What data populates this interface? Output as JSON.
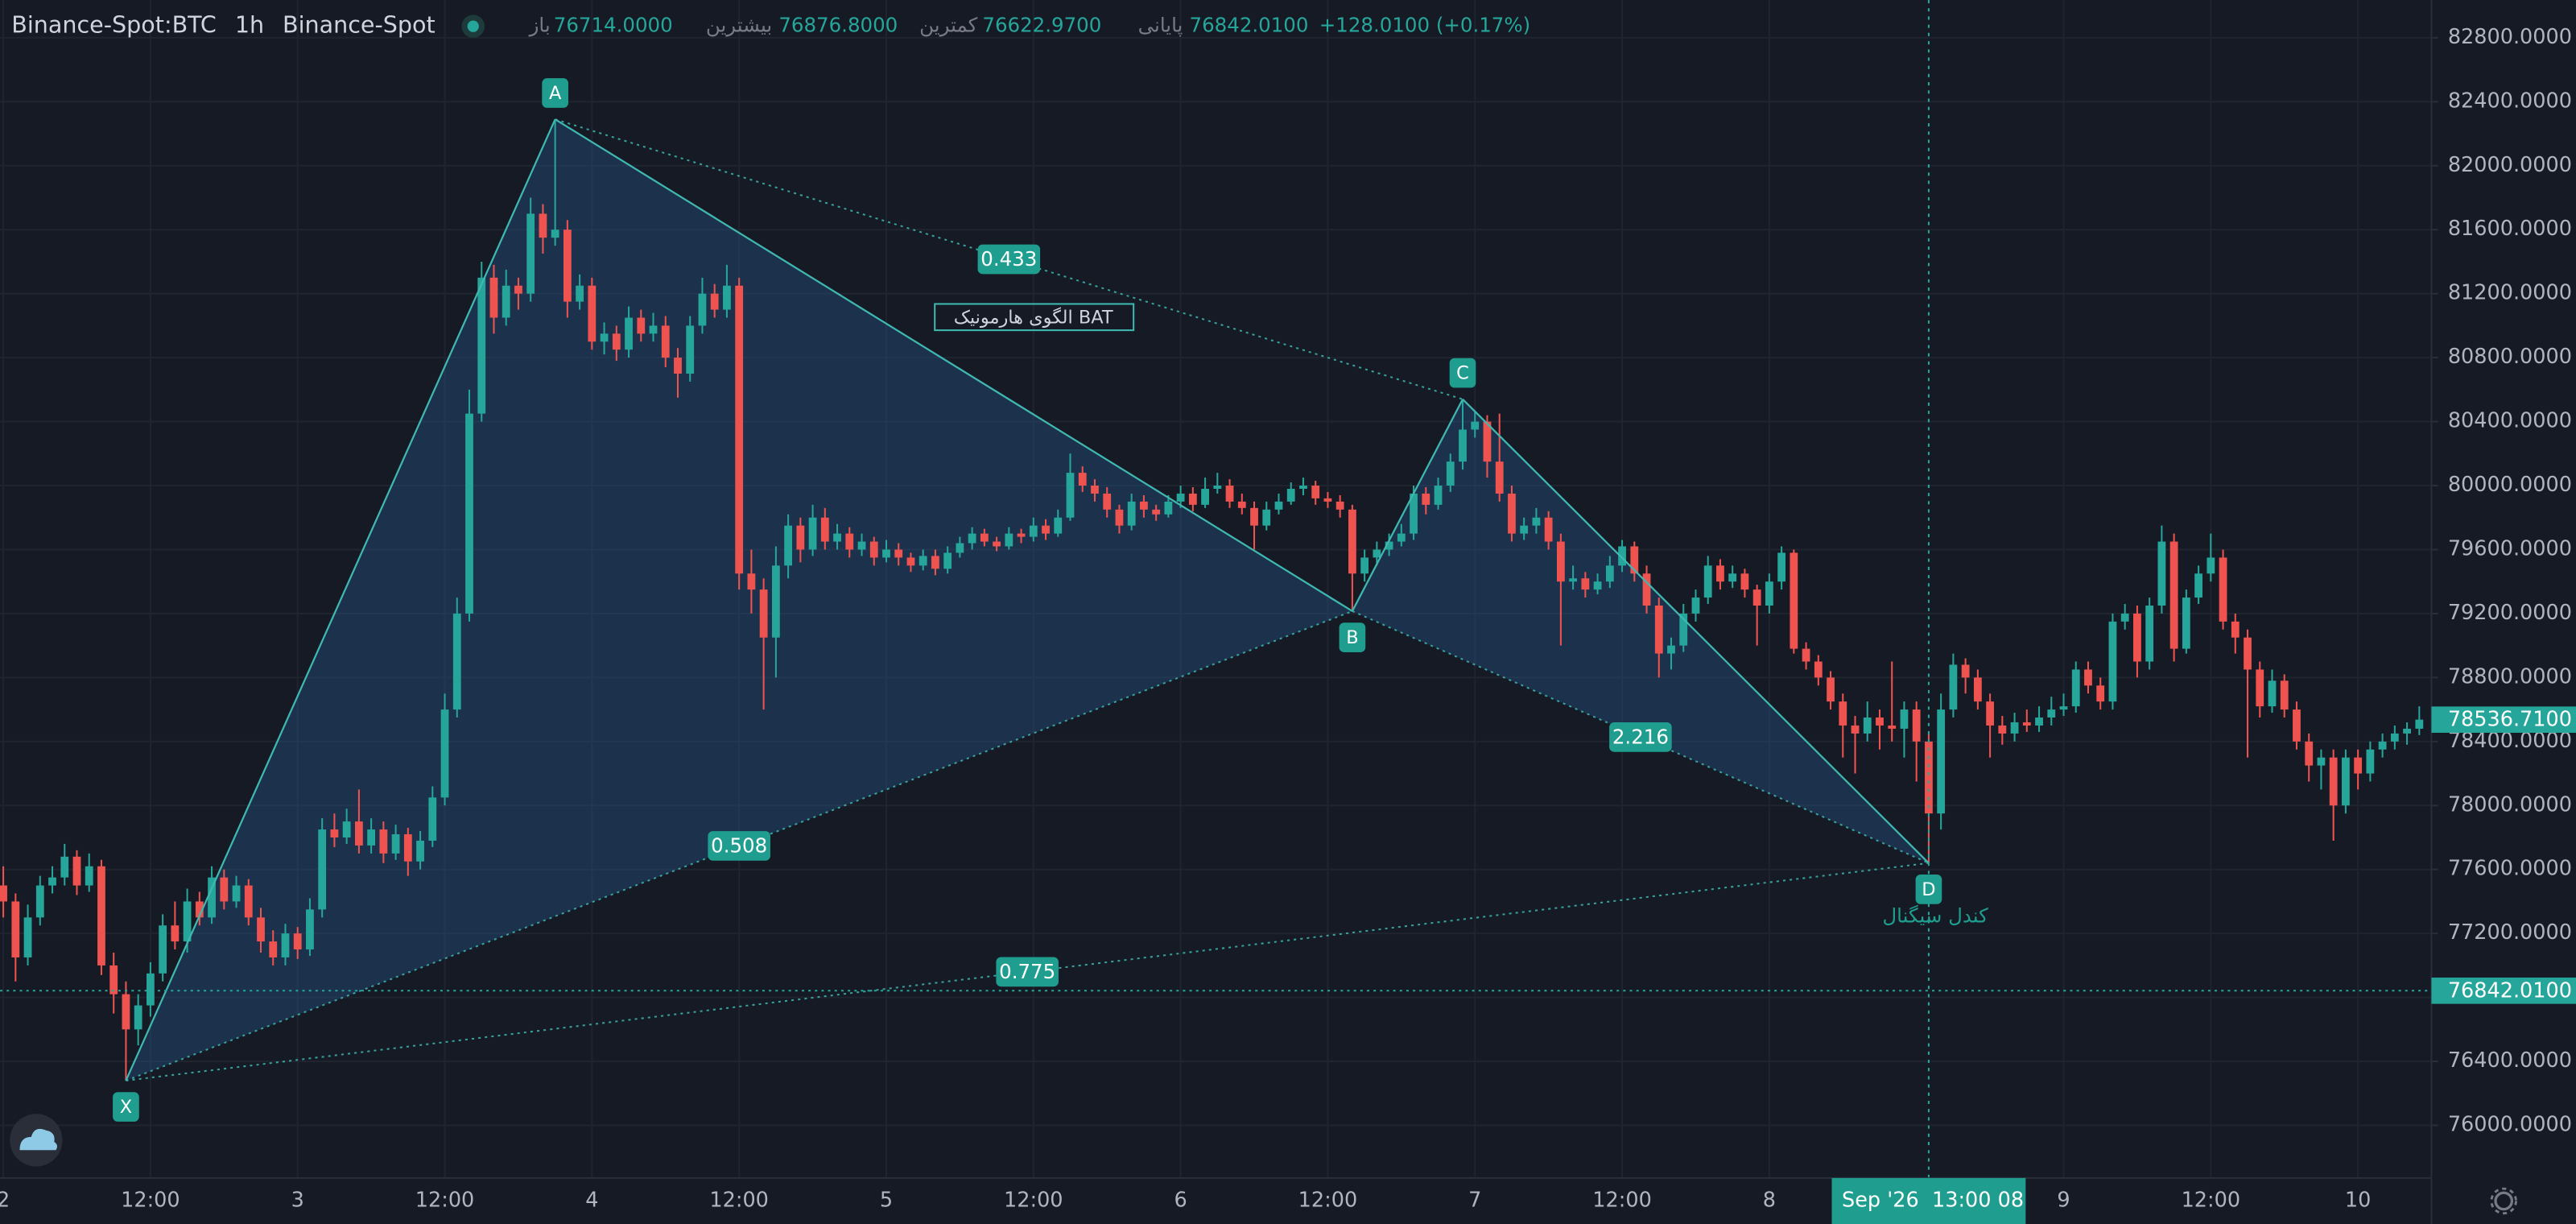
{
  "chart_data": {
    "type": "candlestick",
    "symbol": "Binance-Spot:BTC",
    "interval": "1h",
    "exchange": "Binance-Spot",
    "ohlc_summary": [
      {
        "label": "باز",
        "value": "76714.0000"
      },
      {
        "label": "بیشترین",
        "value": "76876.8000"
      },
      {
        "label": "کمترین",
        "value": "76622.9700"
      },
      {
        "label": "پایانی",
        "value": "76842.0100"
      }
    ],
    "change": "+128.0100 (+0.17%)",
    "up_color": "#26a69a",
    "down_color": "#ef5350",
    "grid": true,
    "ylim": [
      75671,
      83036
    ],
    "yticks": [
      {
        "value": 76000,
        "label": "76000.0000"
      },
      {
        "value": 76400,
        "label": "76400.0000"
      },
      {
        "value": 76800,
        "label": "76800.0000"
      },
      {
        "value": 77200,
        "label": "77200.0000"
      },
      {
        "value": 77600,
        "label": "77600.0000"
      },
      {
        "value": 78000,
        "label": "78000.0000"
      },
      {
        "value": 78400,
        "label": "78400.0000"
      },
      {
        "value": 78800,
        "label": "78800.0000"
      },
      {
        "value": 79200,
        "label": "79200.0000"
      },
      {
        "value": 79600,
        "label": "79600.0000"
      },
      {
        "value": 80000,
        "label": "80000.0000"
      },
      {
        "value": 80400,
        "label": "80400.0000"
      },
      {
        "value": 80800,
        "label": "80800.0000"
      },
      {
        "value": 81200,
        "label": "81200.0000"
      },
      {
        "value": 81600,
        "label": "81600.0000"
      },
      {
        "value": 82000,
        "label": "82000.0000"
      },
      {
        "value": 82400,
        "label": "82400.0000"
      },
      {
        "value": 82800,
        "label": "82800.0000"
      }
    ],
    "xticks": [
      {
        "value": "2026-09-02 00:00",
        "label": "2"
      },
      {
        "value": "2026-09-02 12:00",
        "label": "12:00"
      },
      {
        "value": "2026-09-03 00:00",
        "label": "3"
      },
      {
        "value": "2026-09-03 12:00",
        "label": "12:00"
      },
      {
        "value": "2026-09-04 00:00",
        "label": "4"
      },
      {
        "value": "2026-09-04 12:00",
        "label": "12:00"
      },
      {
        "value": "2026-09-05 00:00",
        "label": "5"
      },
      {
        "value": "2026-09-05 12:00",
        "label": "12:00"
      },
      {
        "value": "2026-09-06 00:00",
        "label": "6"
      },
      {
        "value": "2026-09-06 12:00",
        "label": "12:00"
      },
      {
        "value": "2026-09-07 00:00",
        "label": "7"
      },
      {
        "value": "2026-09-07 12:00",
        "label": "12:00"
      },
      {
        "value": "2026-09-08 00:00",
        "label": "8"
      },
      {
        "value": "2026-09-09 00:00",
        "label": "9"
      },
      {
        "value": "2026-09-09 12:00",
        "label": "12:00"
      },
      {
        "value": "2026-09-10 00:00",
        "label": "10"
      }
    ],
    "x": [
      "2026-09-02 00:00",
      "2026-09-02 01:00",
      "2026-09-02 02:00",
      "2026-09-02 03:00",
      "2026-09-02 04:00",
      "2026-09-02 05:00",
      "2026-09-02 06:00",
      "2026-09-02 07:00",
      "2026-09-02 08:00",
      "2026-09-02 09:00",
      "2026-09-02 10:00",
      "2026-09-02 11:00",
      "2026-09-02 12:00",
      "2026-09-02 13:00",
      "2026-09-02 14:00",
      "2026-09-02 15:00",
      "2026-09-02 16:00",
      "2026-09-02 17:00",
      "2026-09-02 18:00",
      "2026-09-02 19:00",
      "2026-09-02 20:00",
      "2026-09-02 21:00",
      "2026-09-02 22:00",
      "2026-09-02 23:00",
      "2026-09-03 00:00",
      "2026-09-03 01:00",
      "2026-09-03 02:00",
      "2026-09-03 03:00",
      "2026-09-03 04:00",
      "2026-09-03 05:00",
      "2026-09-03 06:00",
      "2026-09-03 07:00",
      "2026-09-03 08:00",
      "2026-09-03 09:00",
      "2026-09-03 10:00",
      "2026-09-03 11:00",
      "2026-09-03 12:00",
      "2026-09-03 13:00",
      "2026-09-03 14:00",
      "2026-09-03 15:00",
      "2026-09-03 16:00",
      "2026-09-03 17:00",
      "2026-09-03 18:00",
      "2026-09-03 19:00",
      "2026-09-03 20:00",
      "2026-09-03 21:00",
      "2026-09-03 22:00",
      "2026-09-03 23:00",
      "2026-09-04 00:00",
      "2026-09-04 01:00",
      "2026-09-04 02:00",
      "2026-09-04 03:00",
      "2026-09-04 04:00",
      "2026-09-04 05:00",
      "2026-09-04 06:00",
      "2026-09-04 07:00",
      "2026-09-04 08:00",
      "2026-09-04 09:00",
      "2026-09-04 10:00",
      "2026-09-04 11:00",
      "2026-09-04 12:00",
      "2026-09-04 13:00",
      "2026-09-04 14:00",
      "2026-09-04 15:00",
      "2026-09-04 16:00",
      "2026-09-04 17:00",
      "2026-09-04 18:00",
      "2026-09-04 19:00",
      "2026-09-04 20:00",
      "2026-09-04 21:00",
      "2026-09-04 22:00",
      "2026-09-04 23:00",
      "2026-09-05 00:00",
      "2026-09-05 01:00",
      "2026-09-05 02:00",
      "2026-09-05 03:00",
      "2026-09-05 04:00",
      "2026-09-05 05:00",
      "2026-09-05 06:00",
      "2026-09-05 07:00",
      "2026-09-05 08:00",
      "2026-09-05 09:00",
      "2026-09-05 10:00",
      "2026-09-05 11:00",
      "2026-09-05 12:00",
      "2026-09-05 13:00",
      "2026-09-05 14:00",
      "2026-09-05 15:00",
      "2026-09-05 16:00",
      "2026-09-05 17:00",
      "2026-09-05 18:00",
      "2026-09-05 19:00",
      "2026-09-05 20:00",
      "2026-09-05 21:00",
      "2026-09-05 22:00",
      "2026-09-05 23:00",
      "2026-09-06 00:00",
      "2026-09-06 01:00",
      "2026-09-06 02:00",
      "2026-09-06 03:00",
      "2026-09-06 04:00",
      "2026-09-06 05:00",
      "2026-09-06 06:00",
      "2026-09-06 07:00",
      "2026-09-06 08:00",
      "2026-09-06 09:00",
      "2026-09-06 10:00",
      "2026-09-06 11:00",
      "2026-09-06 12:00",
      "2026-09-06 13:00",
      "2026-09-06 14:00",
      "2026-09-06 15:00",
      "2026-09-06 16:00",
      "2026-09-06 17:00",
      "2026-09-06 18:00",
      "2026-09-06 19:00",
      "2026-09-06 20:00",
      "2026-09-06 21:00",
      "2026-09-06 22:00",
      "2026-09-06 23:00",
      "2026-09-07 00:00",
      "2026-09-07 01:00",
      "2026-09-07 02:00",
      "2026-09-07 03:00",
      "2026-09-07 04:00",
      "2026-09-07 05:00",
      "2026-09-07 06:00",
      "2026-09-07 07:00",
      "2026-09-07 08:00",
      "2026-09-07 09:00",
      "2026-09-07 10:00",
      "2026-09-07 11:00",
      "2026-09-07 12:00",
      "2026-09-07 13:00",
      "2026-09-07 14:00",
      "2026-09-07 15:00",
      "2026-09-07 16:00",
      "2026-09-07 17:00",
      "2026-09-07 18:00",
      "2026-09-07 19:00",
      "2026-09-07 20:00",
      "2026-09-07 21:00",
      "2026-09-07 22:00",
      "2026-09-07 23:00",
      "2026-09-08 00:00",
      "2026-09-08 01:00",
      "2026-09-08 02:00",
      "2026-09-08 03:00",
      "2026-09-08 04:00",
      "2026-09-08 05:00",
      "2026-09-08 06:00",
      "2026-09-08 07:00",
      "2026-09-08 08:00",
      "2026-09-08 09:00",
      "2026-09-08 10:00",
      "2026-09-08 11:00",
      "2026-09-08 12:00",
      "2026-09-08 13:00",
      "2026-09-08 14:00",
      "2026-09-08 15:00",
      "2026-09-08 16:00",
      "2026-09-08 17:00",
      "2026-09-08 18:00",
      "2026-09-08 19:00",
      "2026-09-08 20:00",
      "2026-09-08 21:00",
      "2026-09-08 22:00",
      "2026-09-08 23:00",
      "2026-09-09 00:00",
      "2026-09-09 01:00",
      "2026-09-09 02:00",
      "2026-09-09 03:00",
      "2026-09-09 04:00",
      "2026-09-09 05:00",
      "2026-09-09 06:00",
      "2026-09-09 07:00",
      "2026-09-09 08:00",
      "2026-09-09 09:00",
      "2026-09-09 10:00",
      "2026-09-09 11:00",
      "2026-09-09 12:00",
      "2026-09-09 13:00",
      "2026-09-09 14:00",
      "2026-09-09 15:00",
      "2026-09-09 16:00",
      "2026-09-09 17:00",
      "2026-09-09 18:00",
      "2026-09-09 19:00",
      "2026-09-09 20:00",
      "2026-09-09 21:00",
      "2026-09-09 22:00",
      "2026-09-09 23:00",
      "2026-09-10 00:00",
      "2026-09-10 01:00",
      "2026-09-10 02:00",
      "2026-09-10 03:00",
      "2026-09-10 04:00",
      "2026-09-10 05:00"
    ],
    "open": [
      77500,
      77400,
      77050,
      77300,
      77500,
      77550,
      77680,
      77500,
      77620,
      77000,
      76820,
      76600,
      76750,
      76950,
      77250,
      77150,
      77400,
      77300,
      77550,
      77400,
      77500,
      77300,
      77150,
      77050,
      77200,
      77100,
      77350,
      77850,
      77800,
      77900,
      77750,
      77850,
      77700,
      77820,
      77650,
      77780,
      78050,
      78600,
      79200,
      80450,
      81300,
      81050,
      81250,
      81200,
      81700,
      81550,
      81600,
      81150,
      81250,
      80900,
      80950,
      80850,
      81050,
      80950,
      81000,
      80800,
      80700,
      81000,
      81200,
      81100,
      81250,
      79450,
      79350,
      79050,
      79500,
      79750,
      79600,
      79800,
      79650,
      79700,
      79600,
      79650,
      79550,
      79600,
      79550,
      79500,
      79560,
      79480,
      79580,
      79640,
      79700,
      79650,
      79620,
      79700,
      79680,
      79750,
      79700,
      79800,
      80080,
      80000,
      79950,
      79850,
      79750,
      79900,
      79850,
      79820,
      79900,
      79950,
      79880,
      79980,
      80000,
      79900,
      79860,
      79750,
      79850,
      79900,
      79980,
      80000,
      79920,
      79900,
      79850,
      79450,
      79550,
      79600,
      79650,
      79700,
      79950,
      79880,
      80000,
      80150,
      80350,
      80400,
      80150,
      79950,
      79700,
      79750,
      79800,
      79650,
      79400,
      79420,
      79350,
      79400,
      79500,
      79620,
      79450,
      79250,
      78950,
      79000,
      79200,
      79300,
      79500,
      79400,
      79450,
      79350,
      79250,
      79400,
      79580,
      78980,
      78900,
      78800,
      78650,
      78500,
      78450,
      78550,
      78500,
      78480,
      78600,
      78400,
      77950,
      78600,
      78880,
      78800,
      78650,
      78500,
      78450,
      78520,
      78500,
      78550,
      78600,
      78620,
      78850,
      78750,
      78650,
      79150,
      79200,
      78900,
      79250,
      79650,
      78980,
      79300,
      79450,
      79550,
      79150,
      79050,
      78850,
      78620,
      78780,
      78600,
      78400,
      78250,
      78300,
      78000,
      78300,
      78200,
      78350,
      78400,
      78450,
      78480
    ],
    "high": [
      77620,
      77450,
      77380,
      77560,
      77620,
      77760,
      77720,
      77700,
      77660,
      77080,
      76900,
      76820,
      77020,
      77320,
      77400,
      77480,
      77460,
      77620,
      77600,
      77560,
      77540,
      77360,
      77220,
      77260,
      77240,
      77420,
      77920,
      77950,
      77980,
      78100,
      77920,
      77900,
      77880,
      77860,
      77840,
      78120,
      78700,
      79300,
      80600,
      81400,
      81380,
      81350,
      81300,
      81800,
      81760,
      82290,
      81660,
      81320,
      81300,
      81020,
      81000,
      81120,
      81100,
      81080,
      81060,
      80860,
      81060,
      81300,
      81260,
      81380,
      81300,
      79600,
      79420,
      79620,
      79820,
      79800,
      79880,
      79860,
      79760,
      79740,
      79700,
      79680,
      79660,
      79640,
      79580,
      79600,
      79600,
      79620,
      79680,
      79740,
      79730,
      79680,
      79740,
      79730,
      79800,
      79790,
      79850,
      80200,
      80120,
      80040,
      79990,
      79880,
      79950,
      79940,
      79880,
      79940,
      80000,
      79990,
      80050,
      80080,
      80040,
      79950,
      79900,
      79900,
      79950,
      80020,
      80050,
      80030,
      79960,
      79940,
      79880,
      79600,
      79650,
      79700,
      79760,
      80000,
      79990,
      80050,
      80200,
      80540,
      80460,
      80440,
      80450,
      80000,
      79800,
      79860,
      79840,
      79700,
      79500,
      79460,
      79450,
      79560,
      79660,
      79650,
      79500,
      79300,
      79050,
      79260,
      79350,
      79560,
      79540,
      79500,
      79480,
      79380,
      79450,
      79620,
      79600,
      79020,
      78940,
      78840,
      78700,
      78560,
      78650,
      78600,
      78900,
      78650,
      78650,
      78450,
      78700,
      78950,
      78920,
      78850,
      78700,
      78560,
      78580,
      78600,
      78620,
      78680,
      78700,
      78900,
      78900,
      78800,
      79200,
      79260,
      79250,
      79300,
      79750,
      79700,
      79350,
      79500,
      79700,
      79600,
      79200,
      79100,
      78900,
      78850,
      78820,
      78650,
      78450,
      78350,
      78350,
      78350,
      78350,
      78400,
      78450,
      78500,
      78520,
      78620
    ],
    "low": [
      77300,
      76900,
      77000,
      77250,
      77450,
      77500,
      77440,
      77460,
      76940,
      76700,
      76280,
      76500,
      76680,
      76900,
      77100,
      77080,
      77250,
      77260,
      77350,
      77360,
      77250,
      77080,
      77000,
      77000,
      77040,
      77060,
      77300,
      77740,
      77760,
      77700,
      77700,
      77640,
      77660,
      77560,
      77600,
      77740,
      78000,
      78550,
      79150,
      80400,
      80950,
      81000,
      81100,
      81150,
      81450,
      81500,
      81050,
      81100,
      80850,
      80820,
      80780,
      80800,
      80900,
      80900,
      80740,
      80550,
      80650,
      80950,
      81050,
      81050,
      79350,
      79200,
      78600,
      78800,
      79420,
      79520,
      79560,
      79600,
      79600,
      79550,
      79560,
      79500,
      79520,
      79500,
      79460,
      79470,
      79440,
      79450,
      79550,
      79600,
      79620,
      79590,
      79600,
      79640,
      79650,
      79660,
      79680,
      79780,
      79960,
      79900,
      79800,
      79700,
      79720,
      79800,
      79780,
      79800,
      79860,
      79840,
      79860,
      79950,
      79860,
      79820,
      79600,
      79720,
      79820,
      79880,
      79940,
      79880,
      79860,
      79800,
      79215,
      79400,
      79500,
      79560,
      79620,
      79660,
      79820,
      79850,
      79960,
      80100,
      80300,
      80050,
      79900,
      79650,
      79660,
      79700,
      79600,
      79000,
      79350,
      79300,
      79320,
      79360,
      79460,
      79400,
      79200,
      78800,
      78850,
      78960,
      79150,
      79260,
      79350,
      79360,
      79300,
      79000,
      79200,
      79350,
      78950,
      78850,
      78750,
      78600,
      78300,
      78200,
      78400,
      78350,
      78400,
      78300,
      78150,
      77640,
      77850,
      78550,
      78700,
      78600,
      78300,
      78380,
      78400,
      78460,
      78460,
      78500,
      78560,
      78580,
      78700,
      78600,
      78600,
      79100,
      78800,
      78850,
      79200,
      78900,
      78950,
      79260,
      79400,
      79100,
      78950,
      78300,
      78550,
      78580,
      78550,
      78350,
      78150,
      78100,
      77780,
      77950,
      78100,
      78150,
      78300,
      78350,
      78380,
      78440
    ],
    "close": [
      77400,
      77050,
      77300,
      77500,
      77550,
      77680,
      77500,
      77620,
      77000,
      76820,
      76600,
      76750,
      76950,
      77250,
      77150,
      77400,
      77300,
      77550,
      77400,
      77500,
      77300,
      77150,
      77050,
      77200,
      77100,
      77350,
      77850,
      77800,
      77900,
      77750,
      77850,
      77700,
      77820,
      77650,
      77780,
      78050,
      78600,
      79200,
      80450,
      81300,
      81050,
      81250,
      81200,
      81700,
      81550,
      81600,
      81150,
      81250,
      80900,
      80950,
      80850,
      81050,
      80950,
      81000,
      80800,
      80700,
      81000,
      81200,
      81100,
      81250,
      79450,
      79350,
      79050,
      79500,
      79750,
      79600,
      79800,
      79650,
      79700,
      79600,
      79650,
      79550,
      79600,
      79550,
      79500,
      79560,
      79480,
      79580,
      79640,
      79700,
      79650,
      79620,
      79700,
      79680,
      79750,
      79700,
      79800,
      80080,
      80000,
      79950,
      79850,
      79750,
      79900,
      79850,
      79820,
      79900,
      79950,
      79880,
      79980,
      80000,
      79900,
      79860,
      79750,
      79850,
      79900,
      79980,
      80000,
      79920,
      79900,
      79850,
      79450,
      79550,
      79600,
      79650,
      79700,
      79950,
      79880,
      80000,
      80150,
      80350,
      80400,
      80150,
      79950,
      79700,
      79750,
      79800,
      79650,
      79400,
      79420,
      79350,
      79400,
      79500,
      79620,
      79450,
      79250,
      78950,
      79000,
      79200,
      79300,
      79500,
      79400,
      79450,
      79350,
      79250,
      79400,
      79580,
      78980,
      78900,
      78800,
      78650,
      78500,
      78450,
      78550,
      78500,
      78480,
      78600,
      78400,
      77950,
      78600,
      78880,
      78800,
      78650,
      78500,
      78450,
      78520,
      78500,
      78550,
      78600,
      78620,
      78850,
      78750,
      78650,
      79150,
      79200,
      78900,
      79250,
      79650,
      78980,
      79300,
      79450,
      79550,
      79150,
      79050,
      78850,
      78620,
      78780,
      78600,
      78400,
      78250,
      78300,
      78000,
      78300,
      78200,
      78350,
      78400,
      78450,
      78480,
      78536.71
    ],
    "price_lines": [
      {
        "value": 78536.71,
        "label": "78536.7100",
        "line": false
      },
      {
        "value": 76842.01,
        "label": "76842.0100",
        "line": true
      }
    ],
    "crosshair": {
      "x": "2026-09-08 13:00",
      "date_label": "Sep '26",
      "time_label": "13:00 08"
    },
    "pattern": {
      "name": "الگوی هارمونیک BAT",
      "signal_label": "کندل سیگنال",
      "color": "#3fb8b0",
      "points": [
        {
          "label": "X",
          "x": "2026-09-02 10:00",
          "price": 76280
        },
        {
          "label": "A",
          "x": "2026-09-03 21:00",
          "price": 82290
        },
        {
          "label": "B",
          "x": "2026-09-06 14:00",
          "price": 79215
        },
        {
          "label": "C",
          "x": "2026-09-06 23:00",
          "price": 80540
        },
        {
          "label": "D",
          "x": "2026-09-08 13:00",
          "price": 77640
        }
      ],
      "ratios": [
        0.433,
        0.508,
        2.216,
        0.775
      ]
    }
  }
}
